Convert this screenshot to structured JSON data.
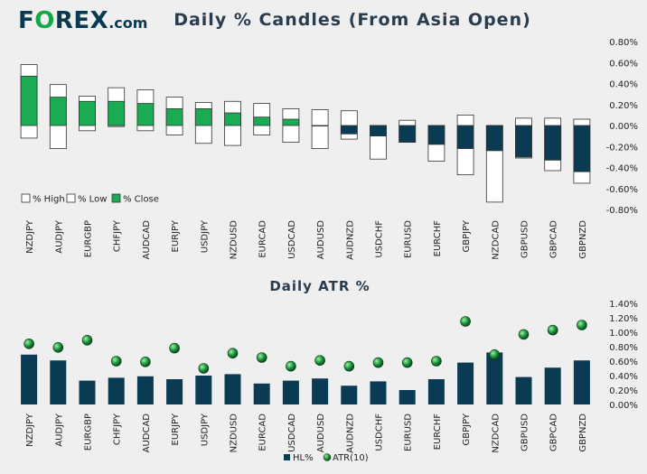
{
  "header": {
    "logo_prefix": "F",
    "logo_o": "O",
    "logo_suffix": "REX",
    "logo_tld": ".com"
  },
  "colors": {
    "navy": "#0b3b52",
    "green": "#1bab52",
    "white": "#ffffff",
    "border": "#333333",
    "background": "#efefef"
  },
  "chart_data": [
    {
      "type": "candle",
      "title": "Daily % Candles (From Asia Open)",
      "categories": [
        "NZDJPY",
        "AUDJPY",
        "EURGBP",
        "CHFJPY",
        "AUDCAD",
        "EURJPY",
        "USDJPY",
        "NZDUSD",
        "EURCAD",
        "USDCAD",
        "AUDUSD",
        "AUDNZD",
        "USDCHF",
        "EURUSD",
        "EURCHF",
        "GBPJPY",
        "NZDCAD",
        "GBPUSD",
        "GBPCAD",
        "GBPNZD"
      ],
      "series": [
        {
          "name": "% High",
          "values": [
            0.58,
            0.39,
            0.28,
            0.36,
            0.34,
            0.27,
            0.22,
            0.23,
            0.21,
            0.16,
            0.15,
            0.14,
            0.0,
            0.05,
            0.0,
            0.1,
            0.0,
            0.07,
            0.07,
            0.06
          ]
        },
        {
          "name": "% Low",
          "values": [
            -0.12,
            -0.22,
            -0.05,
            -0.01,
            -0.05,
            -0.09,
            -0.17,
            -0.19,
            -0.09,
            -0.16,
            -0.22,
            -0.13,
            -0.32,
            -0.16,
            -0.34,
            -0.47,
            -0.73,
            -0.31,
            -0.43,
            -0.55
          ]
        },
        {
          "name": "% Close",
          "values": [
            0.47,
            0.27,
            0.23,
            0.23,
            0.21,
            0.16,
            0.16,
            0.12,
            0.08,
            0.06,
            0.0,
            -0.08,
            -0.1,
            -0.16,
            -0.18,
            -0.22,
            -0.24,
            -0.3,
            -0.33,
            -0.44
          ]
        }
      ],
      "ylim": [
        -0.8,
        0.8
      ],
      "yticks": [
        "0.80%",
        "0.60%",
        "0.40%",
        "0.20%",
        "0.00%",
        "-0.20%",
        "-0.40%",
        "-0.60%",
        "-0.80%"
      ],
      "legend": [
        "% High",
        "% Low",
        "% Close"
      ],
      "legend_position": "bottom-left"
    },
    {
      "type": "bar",
      "title": "Daily ATR %",
      "categories": [
        "NZDJPY",
        "AUDJPY",
        "EURGBP",
        "CHFJPY",
        "AUDCAD",
        "EURJPY",
        "USDJPY",
        "NZDUSD",
        "EURCAD",
        "USDCAD",
        "AUDUSD",
        "AUDNZD",
        "USDCHF",
        "EURUSD",
        "EURCHF",
        "GBPJPY",
        "NZDCAD",
        "GBPUSD",
        "GBPCAD",
        "GBPNZD"
      ],
      "series": [
        {
          "name": "HL%",
          "type": "bar",
          "values": [
            0.69,
            0.61,
            0.33,
            0.37,
            0.39,
            0.35,
            0.4,
            0.42,
            0.29,
            0.33,
            0.36,
            0.26,
            0.32,
            0.2,
            0.35,
            0.58,
            0.72,
            0.38,
            0.51,
            0.61
          ]
        },
        {
          "name": "ATR(10)",
          "type": "scatter",
          "values": [
            0.84,
            0.79,
            0.89,
            0.6,
            0.59,
            0.78,
            0.5,
            0.71,
            0.65,
            0.53,
            0.61,
            0.53,
            0.58,
            0.58,
            0.6,
            1.15,
            0.69,
            0.97,
            1.03,
            1.1
          ]
        }
      ],
      "ylim": [
        0,
        1.4
      ],
      "yticks": [
        "1.40%",
        "1.20%",
        "1.00%",
        "0.80%",
        "0.60%",
        "0.40%",
        "0.20%",
        "0.00%"
      ],
      "legend": [
        "HL%",
        "ATR(10)"
      ],
      "legend_position": "bottom-center"
    }
  ]
}
